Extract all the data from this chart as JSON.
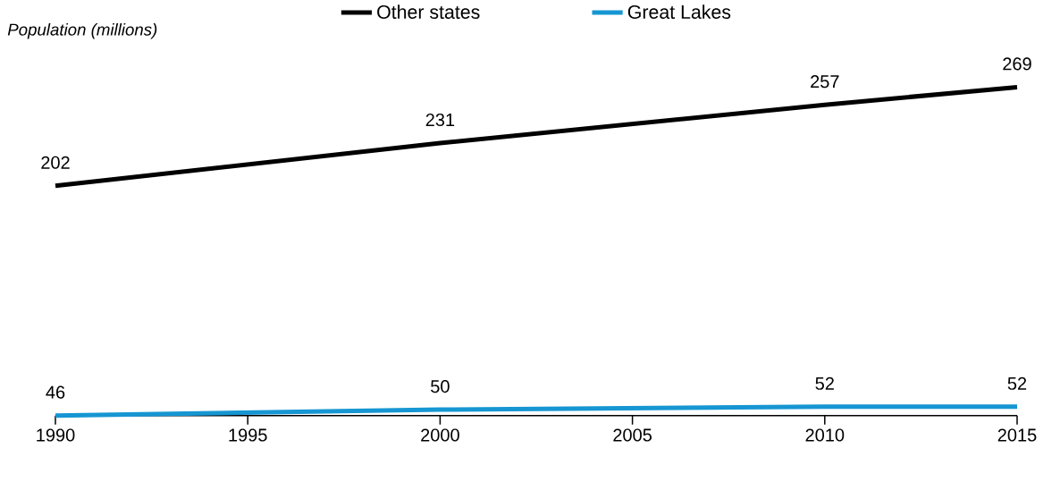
{
  "chart_data": {
    "type": "line",
    "ylabel": "Population (millions)",
    "x": [
      1990,
      2000,
      2010,
      2015
    ],
    "series": [
      {
        "name": "Other states",
        "color": "#000000",
        "values": [
          202,
          231,
          257,
          269
        ]
      },
      {
        "name": "Great Lakes",
        "color": "#1696d2",
        "values": [
          46,
          50,
          52,
          52
        ]
      }
    ],
    "xlim": [
      1990,
      2015
    ],
    "xticks": [
      1990,
      1995,
      2000,
      2005,
      2010,
      2015
    ],
    "data_labels": true,
    "legend": "top",
    "grid": false,
    "marker": "none",
    "line_style": "solid"
  }
}
